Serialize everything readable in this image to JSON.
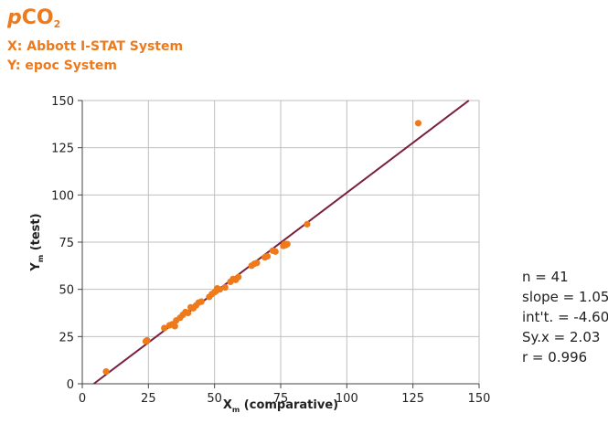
{
  "header": {
    "title_prefix": "p",
    "title_main": "CO",
    "title_sub": "2",
    "x_system": "X: Abbott I-STAT System",
    "y_system": "Y: epoc System"
  },
  "stats": {
    "n": "n = 41",
    "slope": "slope = 1.058",
    "intercept": "int't. = -4.60",
    "syx": "Sy.x = 2.03",
    "r": "r = 0.996"
  },
  "colors": {
    "points": "#ee7a1b",
    "regression": "#7a1f3d",
    "grid": "#bfbfbf",
    "axis": "#444444",
    "title": "#ee7a1b"
  },
  "chart_data": {
    "type": "scatter",
    "title": "pCO2",
    "xlabel": "X",
    "xlabel_sub": "m",
    "xlabel_suffix": " (comparative)",
    "ylabel": "Y",
    "ylabel_sub": "m",
    "ylabel_suffix": " (test)",
    "xlim": [
      0,
      150
    ],
    "ylim": [
      0,
      150
    ],
    "xticks": [
      0,
      25,
      50,
      75,
      100,
      125,
      150
    ],
    "yticks": [
      0,
      25,
      50,
      75,
      100,
      125,
      150
    ],
    "grid": true,
    "regression": {
      "slope": 1.058,
      "intercept": -4.6
    },
    "points": [
      [
        9,
        6.5
      ],
      [
        24,
        22.5
      ],
      [
        24.5,
        23
      ],
      [
        31,
        29.5
      ],
      [
        33,
        31
      ],
      [
        34,
        31.5
      ],
      [
        35,
        30.5
      ],
      [
        35.5,
        33.5
      ],
      [
        37,
        35
      ],
      [
        38,
        36.5
      ],
      [
        39,
        38
      ],
      [
        40,
        37.5
      ],
      [
        41,
        40.5
      ],
      [
        42,
        40
      ],
      [
        43,
        41.5
      ],
      [
        44,
        43
      ],
      [
        45,
        43.5
      ],
      [
        48,
        46
      ],
      [
        49,
        47.5
      ],
      [
        50,
        48.5
      ],
      [
        50.5,
        49
      ],
      [
        51,
        50.5
      ],
      [
        52,
        50
      ],
      [
        54,
        51
      ],
      [
        56,
        54
      ],
      [
        57,
        55.5
      ],
      [
        58,
        55
      ],
      [
        59,
        56.5
      ],
      [
        64,
        62.5
      ],
      [
        65,
        63.5
      ],
      [
        66,
        64
      ],
      [
        69,
        67
      ],
      [
        70,
        67.5
      ],
      [
        72,
        70.5
      ],
      [
        73,
        70
      ],
      [
        76,
        73
      ],
      [
        76.5,
        74
      ],
      [
        77,
        73.5
      ],
      [
        77.5,
        74
      ],
      [
        85,
        84.5
      ],
      [
        127,
        138
      ]
    ]
  }
}
